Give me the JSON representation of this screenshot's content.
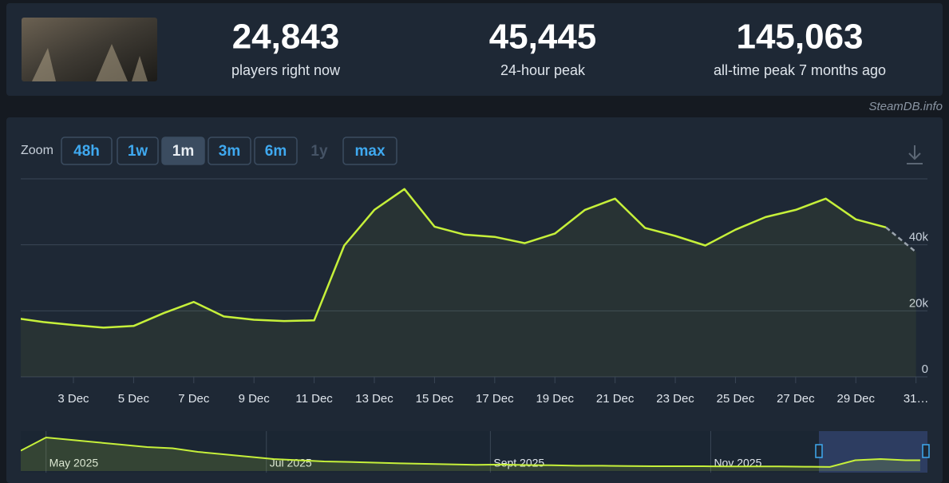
{
  "header": {
    "stats": [
      {
        "value": "24,843",
        "label": "players right now"
      },
      {
        "value": "45,445",
        "label": "24-hour peak"
      },
      {
        "value": "145,063",
        "label": "all-time peak 7 months ago"
      }
    ],
    "watermark": "SteamDB.info"
  },
  "zoom": {
    "label": "Zoom",
    "buttons": [
      "48h",
      "1w",
      "1m",
      "3m",
      "6m",
      "1y",
      "max"
    ],
    "active_index": 2,
    "disabled_index": [
      5
    ]
  },
  "chart_data": [
    {
      "type": "line",
      "x": [
        1,
        2,
        3,
        4,
        5,
        6,
        7,
        8,
        9,
        10,
        11,
        12,
        13,
        14,
        15,
        16,
        17,
        18,
        19,
        20,
        21,
        22,
        23,
        24,
        25,
        26,
        27,
        28,
        29,
        30,
        31
      ],
      "xlim": [
        1.25,
        31.38
      ],
      "xticks": [
        {
          "value": 3,
          "label": "3 Dec"
        },
        {
          "value": 5,
          "label": "5 Dec"
        },
        {
          "value": 7,
          "label": "7 Dec"
        },
        {
          "value": 9,
          "label": "9 Dec"
        },
        {
          "value": 11,
          "label": "11 Dec"
        },
        {
          "value": 13,
          "label": "13 Dec"
        },
        {
          "value": 15,
          "label": "15 Dec"
        },
        {
          "value": 17,
          "label": "17 Dec"
        },
        {
          "value": 19,
          "label": "19 Dec"
        },
        {
          "value": 21,
          "label": "21 Dec"
        },
        {
          "value": 23,
          "label": "23 Dec"
        },
        {
          "value": 25,
          "label": "25 Dec"
        },
        {
          "value": 27,
          "label": "27 Dec"
        },
        {
          "value": 29,
          "label": "29 Dec"
        },
        {
          "value": 31,
          "label": "31…"
        }
      ],
      "ylim": [
        0,
        60000
      ],
      "yticks": [
        0,
        {
          "value": 20000,
          "label": "20k"
        },
        {
          "value": 40000,
          "label": "40k"
        }
      ],
      "grid": true,
      "last_point_dashed": true,
      "series": [
        {
          "color": "#c6f03a",
          "values": [
            17900,
            16600,
            15700,
            14900,
            15400,
            19300,
            22700,
            18300,
            17300,
            16900,
            17100,
            39800,
            50600,
            56900,
            45500,
            43100,
            42400,
            40500,
            43400,
            50600,
            54000,
            45100,
            42700,
            39800,
            44600,
            48400,
            50600,
            54000,
            47700,
            45300,
            37800
          ]
        }
      ]
    },
    {
      "type": "area",
      "x": [
        114,
        121,
        128,
        135,
        142,
        149,
        156,
        163,
        170,
        177,
        184,
        191,
        198,
        205,
        212,
        219,
        226,
        233,
        240,
        247,
        254,
        261,
        268,
        275,
        282,
        289,
        296,
        303,
        310,
        317,
        324,
        331,
        338,
        345,
        352,
        359,
        363
      ],
      "xlim": [
        114,
        365
      ],
      "xticks": [
        {
          "value": 121,
          "label": "May 2025"
        },
        {
          "value": 182,
          "label": "Jul 2025"
        },
        {
          "value": 244,
          "label": "Sept 2025"
        },
        {
          "value": 305,
          "label": "Nov 2025"
        }
      ],
      "ylim": [
        0,
        150000
      ],
      "series": [
        {
          "color": "#c6f03a",
          "values": [
            85000,
            140000,
            130000,
            120000,
            110000,
            100000,
            95000,
            80000,
            70000,
            60000,
            50000,
            45000,
            40000,
            38000,
            35000,
            32000,
            30000,
            28000,
            26000,
            27000,
            25000,
            24000,
            22000,
            22000,
            21000,
            20000,
            20000,
            20000,
            19000,
            19000,
            19000,
            18000,
            17000,
            45000,
            50000,
            45000,
            45000
          ]
        }
      ]
    }
  ]
}
